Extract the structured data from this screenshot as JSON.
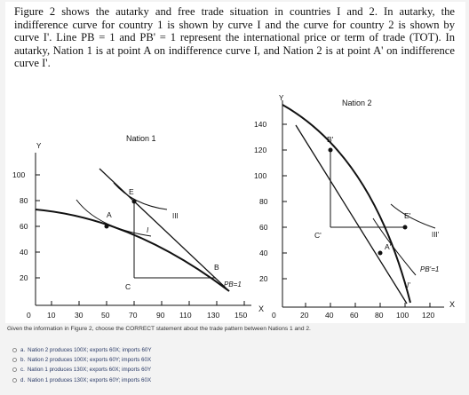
{
  "problem_text": "Figure 2 shows the autarky and free trade situation in countries I and 2. In autarky, the indifference curve for country 1 is shown by curve I and the curve for country 2 is shown by curve I'. Line PB = 1 and PB' = 1 represent the international price or term of trade (TOT). In autarky, Nation 1 is at point A on indifference curve I, and Nation 2 is at point A' on indifference curve I'.",
  "chart_data": [
    {
      "type": "diagram",
      "title": "Nation 1",
      "ylabel": "Y",
      "xlabel": "X",
      "x_ticks": [
        "0",
        "10",
        "30",
        "50",
        "70",
        "90",
        "110",
        "130",
        "150"
      ],
      "y_ticks": [
        "100",
        "80",
        "60",
        "40",
        "20"
      ],
      "curve_labels": [
        "I",
        "III"
      ],
      "points": [
        {
          "label": "A",
          "x": 50,
          "y": 60
        },
        {
          "label": "E",
          "x": 70,
          "y": 80
        },
        {
          "label": "B",
          "x": 130,
          "y": 20
        },
        {
          "label": "C",
          "x": 70,
          "y": 20
        }
      ],
      "price_label": "PB=1"
    },
    {
      "type": "diagram",
      "title": "Nation 2",
      "ylabel": "Y",
      "xlabel": "X",
      "x_ticks": [
        "0",
        "20",
        "40",
        "60",
        "80",
        "100",
        "120"
      ],
      "y_ticks": [
        "140",
        "120",
        "100",
        "80",
        "60",
        "40",
        "20"
      ],
      "curve_labels": [
        "I'",
        "III'"
      ],
      "points": [
        {
          "label": "B'",
          "x": 40,
          "y": 120
        },
        {
          "label": "A'",
          "x": 80,
          "y": 40
        },
        {
          "label": "E'",
          "x": 100,
          "y": 60
        },
        {
          "label": "C'",
          "x": 40,
          "y": 60
        }
      ],
      "price_label": "PB'=1"
    }
  ],
  "question": "Given the information in Figure 2, choose the CORRECT statement about the trade pattern between Nations 1 and 2.",
  "options": [
    {
      "letter": "a.",
      "text": "Nation 2 produces 100X; exports 60X; imports 60Y"
    },
    {
      "letter": "b.",
      "text": "Nation 2 produces 100X; exports 60Y; imports 60X"
    },
    {
      "letter": "c.",
      "text": "Nation 1 produces 130X; exports 60X; imports 60Y"
    },
    {
      "letter": "d.",
      "text": "Nation 1 produces 130X; exports 60Y; imports 60X"
    }
  ]
}
